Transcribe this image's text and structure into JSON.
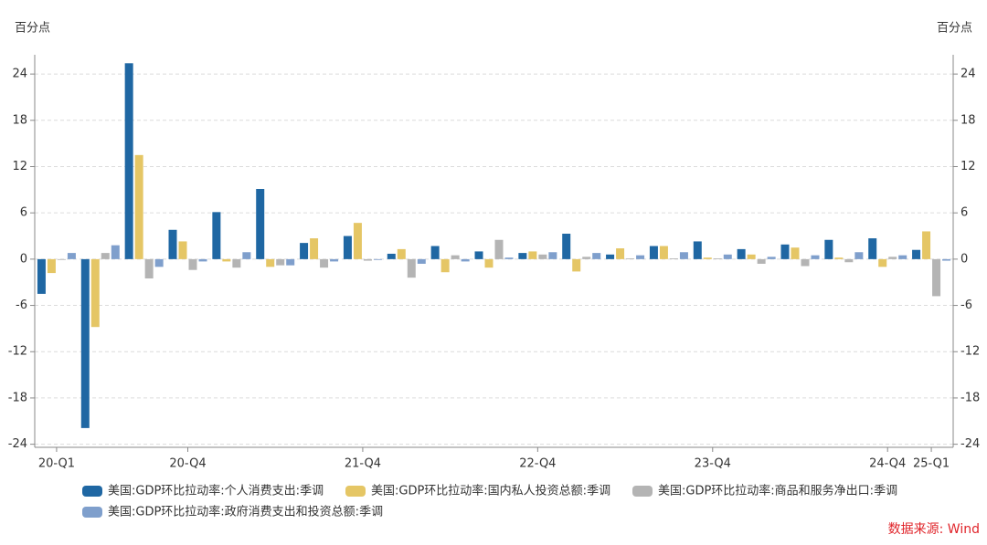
{
  "chart_data": {
    "type": "bar",
    "ylabel": "百分点",
    "y2label": "百分点",
    "source": "数据来源: Wind",
    "categories": [
      "20-Q1",
      null,
      null,
      "20-Q4",
      null,
      null,
      null,
      "21-Q4",
      null,
      null,
      null,
      "22-Q4",
      null,
      null,
      null,
      "23-Q4",
      null,
      null,
      null,
      "24-Q4",
      "25-Q1"
    ],
    "series": [
      {
        "name": "美国:GDP环比拉动率:个人消费支出:季调",
        "color": "#1f67a3",
        "values": [
          -4.5,
          -21.9,
          25.4,
          3.8,
          6.1,
          9.1,
          2.1,
          3.0,
          0.7,
          1.7,
          1.0,
          0.8,
          3.3,
          0.6,
          1.7,
          2.3,
          1.3,
          1.9,
          2.5,
          2.7,
          1.2
        ]
      },
      {
        "name": "美国:GDP环比拉动率:国内私人投资总额:季调",
        "color": "#e5c665",
        "values": [
          -1.8,
          -8.8,
          13.5,
          2.3,
          -0.3,
          -1.0,
          2.7,
          4.7,
          1.3,
          -1.7,
          -1.1,
          1.0,
          -1.6,
          1.4,
          1.7,
          0.2,
          0.6,
          1.5,
          0.2,
          -1.0,
          3.6
        ]
      },
      {
        "name": "美国:GDP环比拉动率:商品和服务净出口:季调",
        "color": "#b4b4b4",
        "values": [
          -0.1,
          0.8,
          -2.5,
          -1.4,
          -1.1,
          -0.8,
          -1.1,
          -0.2,
          -2.4,
          0.5,
          2.5,
          0.6,
          0.3,
          0.1,
          0.1,
          0.1,
          -0.6,
          -0.9,
          -0.4,
          0.3,
          -4.8
        ]
      },
      {
        "name": "美国:GDP环比拉动率:政府消费支出和投资总额:季调",
        "color": "#7f9fcc",
        "values": [
          0.8,
          1.8,
          -1.0,
          -0.3,
          0.9,
          -0.8,
          -0.3,
          -0.1,
          -0.6,
          -0.3,
          0.2,
          0.9,
          0.8,
          0.5,
          0.9,
          0.6,
          0.3,
          0.5,
          0.9,
          0.5,
          -0.2
        ]
      }
    ],
    "ylim": [
      -24.4,
      26.5
    ],
    "yticks": [
      -24,
      -18,
      -12,
      -6,
      0,
      6,
      12,
      18,
      24
    ],
    "y2lim": [
      -24.4,
      26.5
    ],
    "y2ticks": [
      -24,
      -18,
      -12,
      -6,
      0,
      6,
      12,
      18,
      24
    ],
    "grid": true
  }
}
